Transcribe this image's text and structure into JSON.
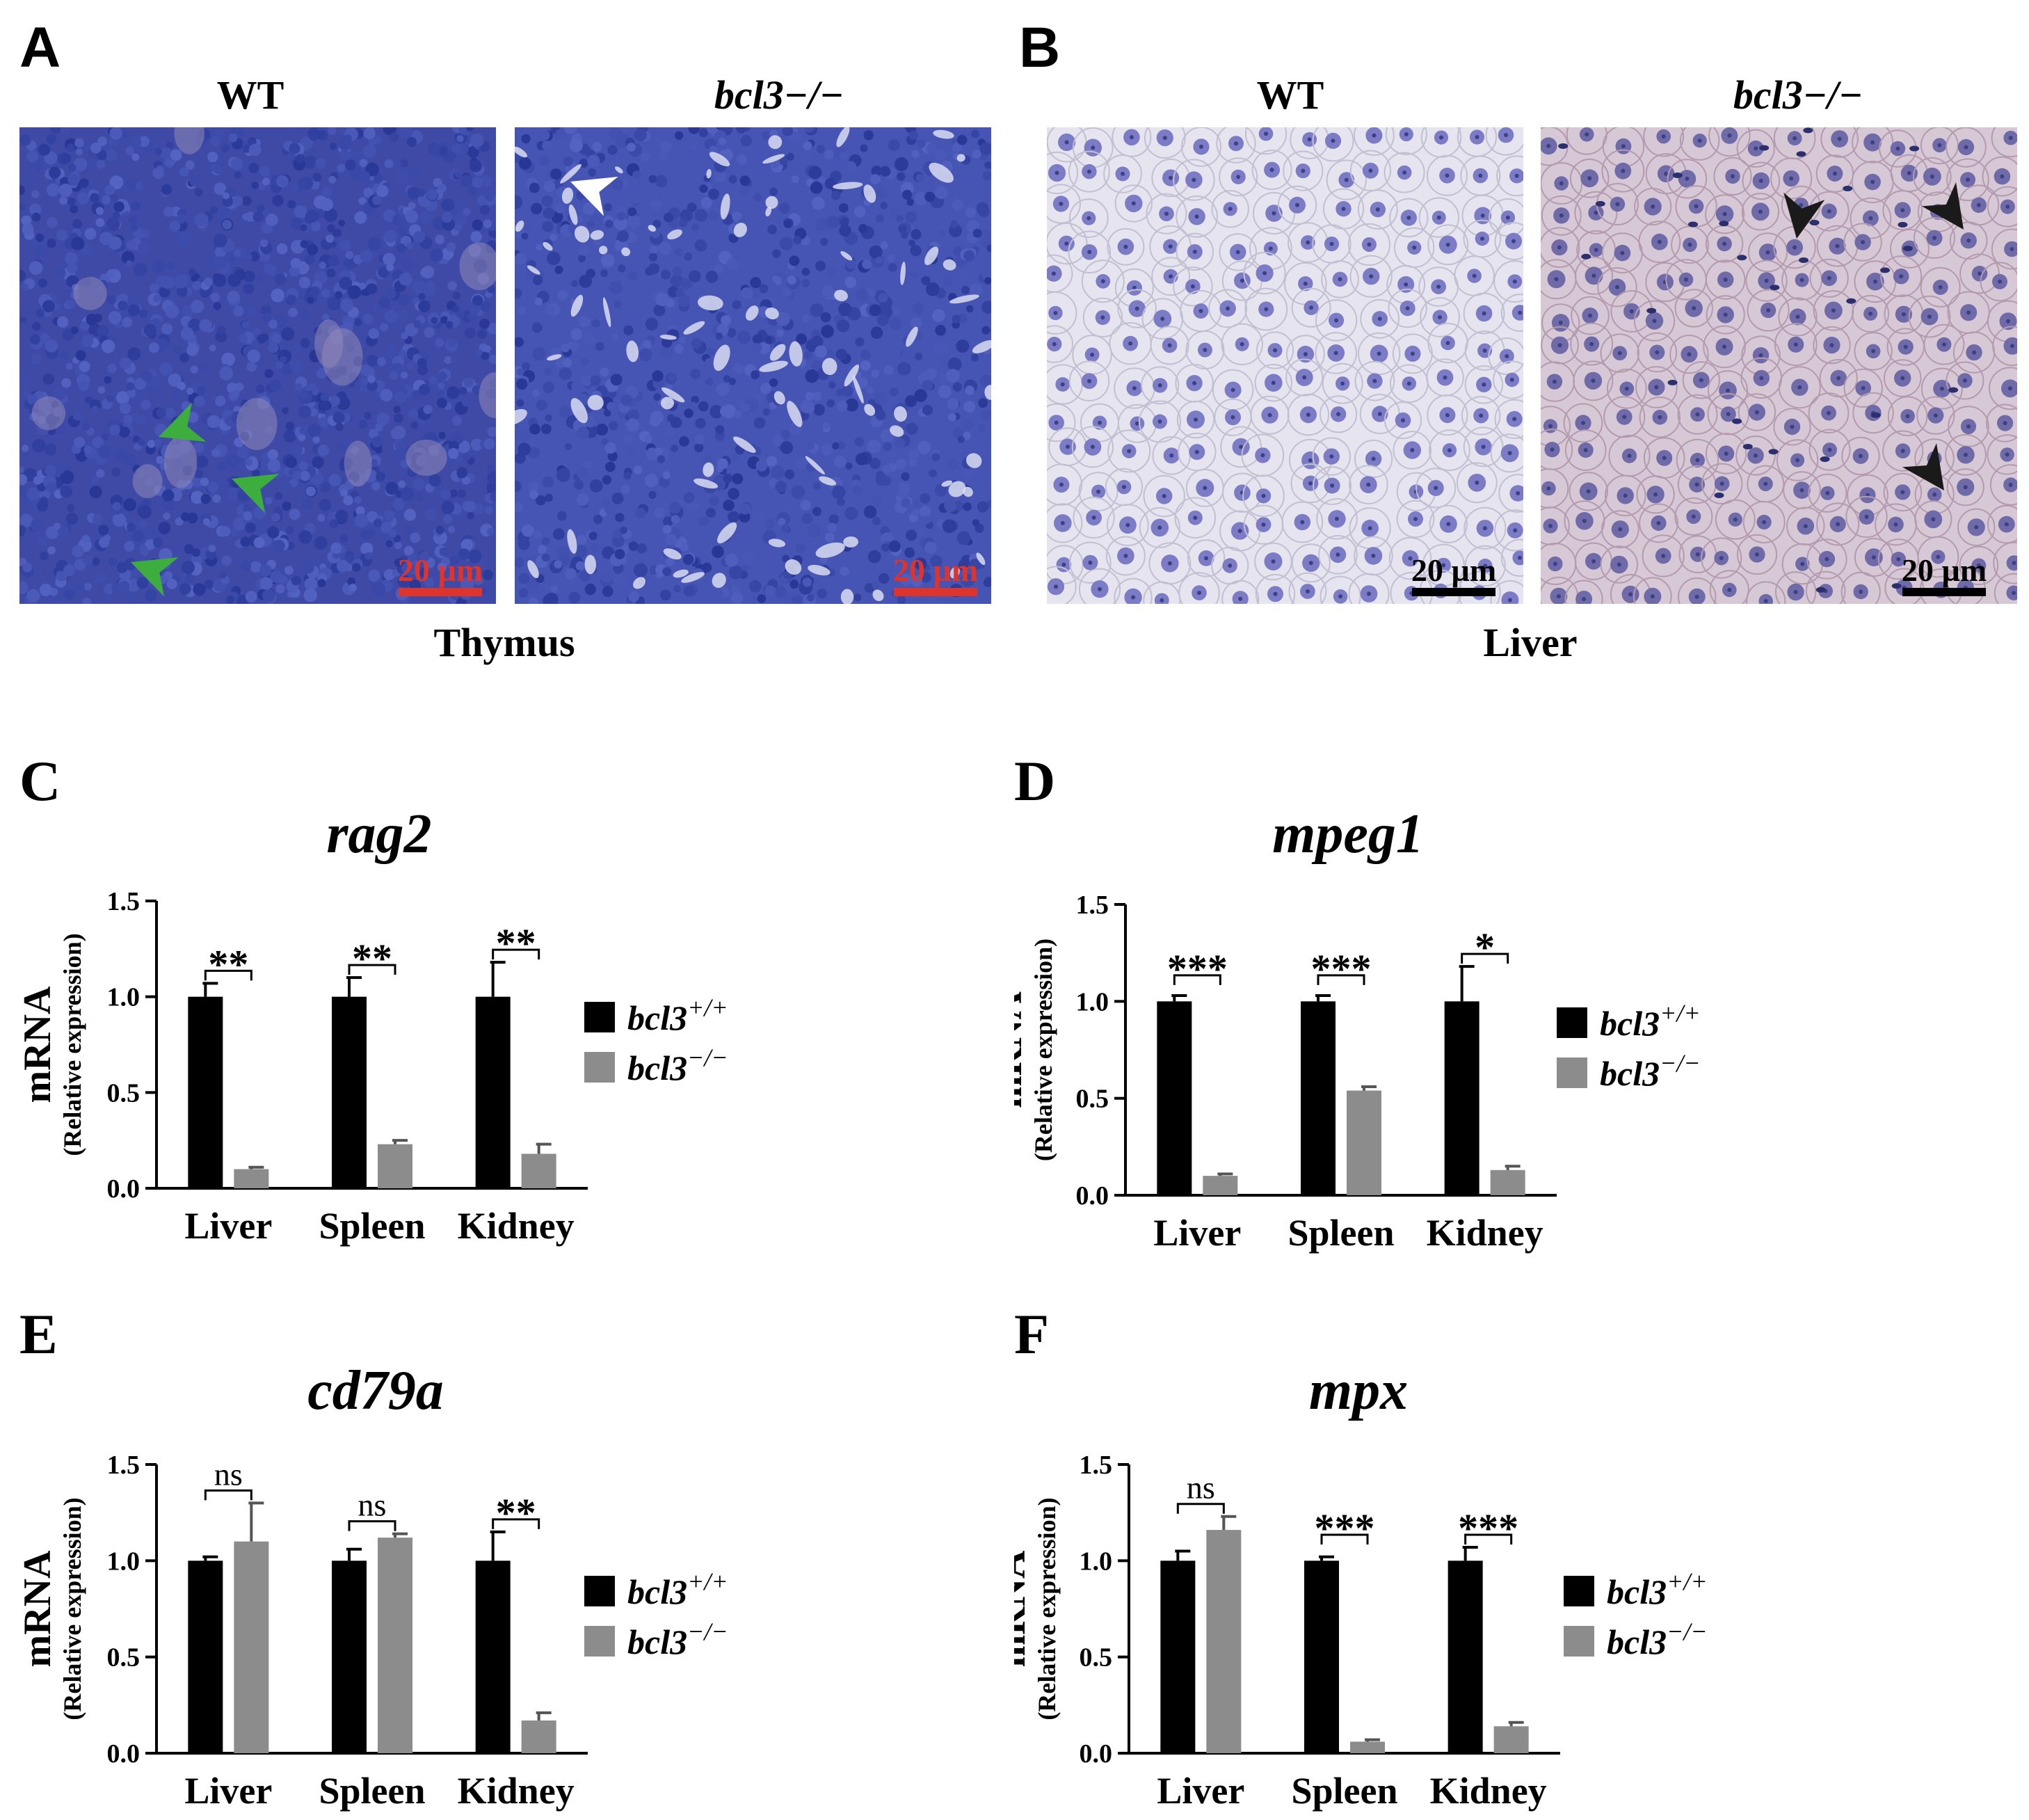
{
  "panel_a": {
    "letter": "A",
    "col_left": "WT",
    "col_right": "bcl3−/−",
    "scalebar_left": "20 µm",
    "scalebar_right": "20 µm",
    "caption": "Thymus",
    "scalebar_color": "#e0332a",
    "arrow_color": "#3dae3d"
  },
  "panel_b": {
    "letter": "B",
    "col_left": "WT",
    "col_right": "bcl3−/−",
    "scalebar_left": "20 µm",
    "scalebar_right": "20 µm",
    "caption": "Liver",
    "scalebar_color": "#000000",
    "arrow_color": "#1a1a1a"
  },
  "legend": {
    "wt_label": "bcl3",
    "wt_sup": "+/+",
    "ko_label": "bcl3",
    "ko_sup": "−/−",
    "wt_color": "#000000",
    "ko_color": "#8c8c8c"
  },
  "chart_data": [
    {
      "panel": "C",
      "type": "bar",
      "title": "rag2",
      "ylabel": "mRNA",
      "ylabel2": "(Relative expression)",
      "ylim": [
        0,
        1.5
      ],
      "yticks": [
        "0.0",
        "0.5",
        "1.0",
        "1.5"
      ],
      "categories": [
        "Liver",
        "Spleen",
        "Kidney"
      ],
      "series": [
        {
          "name": "bcl3+/+",
          "values": [
            1.0,
            1.0,
            1.0
          ],
          "errors": [
            0.07,
            0.1,
            0.18
          ]
        },
        {
          "name": "bcl3−/−",
          "values": [
            0.1,
            0.23,
            0.18
          ],
          "errors": [
            0.01,
            0.02,
            0.05
          ]
        }
      ],
      "significance": [
        "**",
        "**",
        "**"
      ]
    },
    {
      "panel": "D",
      "type": "bar",
      "title": "mpeg1",
      "ylabel": "mRNA",
      "ylabel2": "(Relative expression)",
      "ylim": [
        0,
        1.5
      ],
      "yticks": [
        "0.0",
        "0.5",
        "1.0",
        "1.5"
      ],
      "categories": [
        "Liver",
        "Spleen",
        "Kidney"
      ],
      "series": [
        {
          "name": "bcl3+/+",
          "values": [
            1.0,
            1.0,
            1.0
          ],
          "errors": [
            0.03,
            0.03,
            0.18
          ]
        },
        {
          "name": "bcl3−/−",
          "values": [
            0.1,
            0.54,
            0.13
          ],
          "errors": [
            0.01,
            0.02,
            0.02
          ]
        }
      ],
      "significance": [
        "***",
        "***",
        "*"
      ]
    },
    {
      "panel": "E",
      "type": "bar",
      "title": "cd79a",
      "ylabel": "mRNA",
      "ylabel2": "(Relative expression)",
      "ylim": [
        0,
        1.5
      ],
      "yticks": [
        "0.0",
        "0.5",
        "1.0",
        "1.5"
      ],
      "categories": [
        "Liver",
        "Spleen",
        "Kidney"
      ],
      "series": [
        {
          "name": "bcl3+/+",
          "values": [
            1.0,
            1.0,
            1.0
          ],
          "errors": [
            0.02,
            0.06,
            0.15
          ]
        },
        {
          "name": "bcl3−/−",
          "values": [
            1.1,
            1.12,
            0.17
          ],
          "errors": [
            0.2,
            0.02,
            0.04
          ]
        }
      ],
      "significance": [
        "ns",
        "ns",
        "**"
      ]
    },
    {
      "panel": "F",
      "type": "bar",
      "title": "mpx",
      "ylabel": "mRNA",
      "ylabel2": "(Relative expression)",
      "ylim": [
        0,
        1.5
      ],
      "yticks": [
        "0.0",
        "0.5",
        "1.0",
        "1.5"
      ],
      "categories": [
        "Liver",
        "Spleen",
        "Kidney"
      ],
      "series": [
        {
          "name": "bcl3+/+",
          "values": [
            1.0,
            1.0,
            1.0
          ],
          "errors": [
            0.05,
            0.02,
            0.07
          ]
        },
        {
          "name": "bcl3−/−",
          "values": [
            1.16,
            0.06,
            0.14
          ],
          "errors": [
            0.07,
            0.01,
            0.02
          ]
        }
      ],
      "significance": [
        "ns",
        "***",
        "***"
      ]
    }
  ]
}
